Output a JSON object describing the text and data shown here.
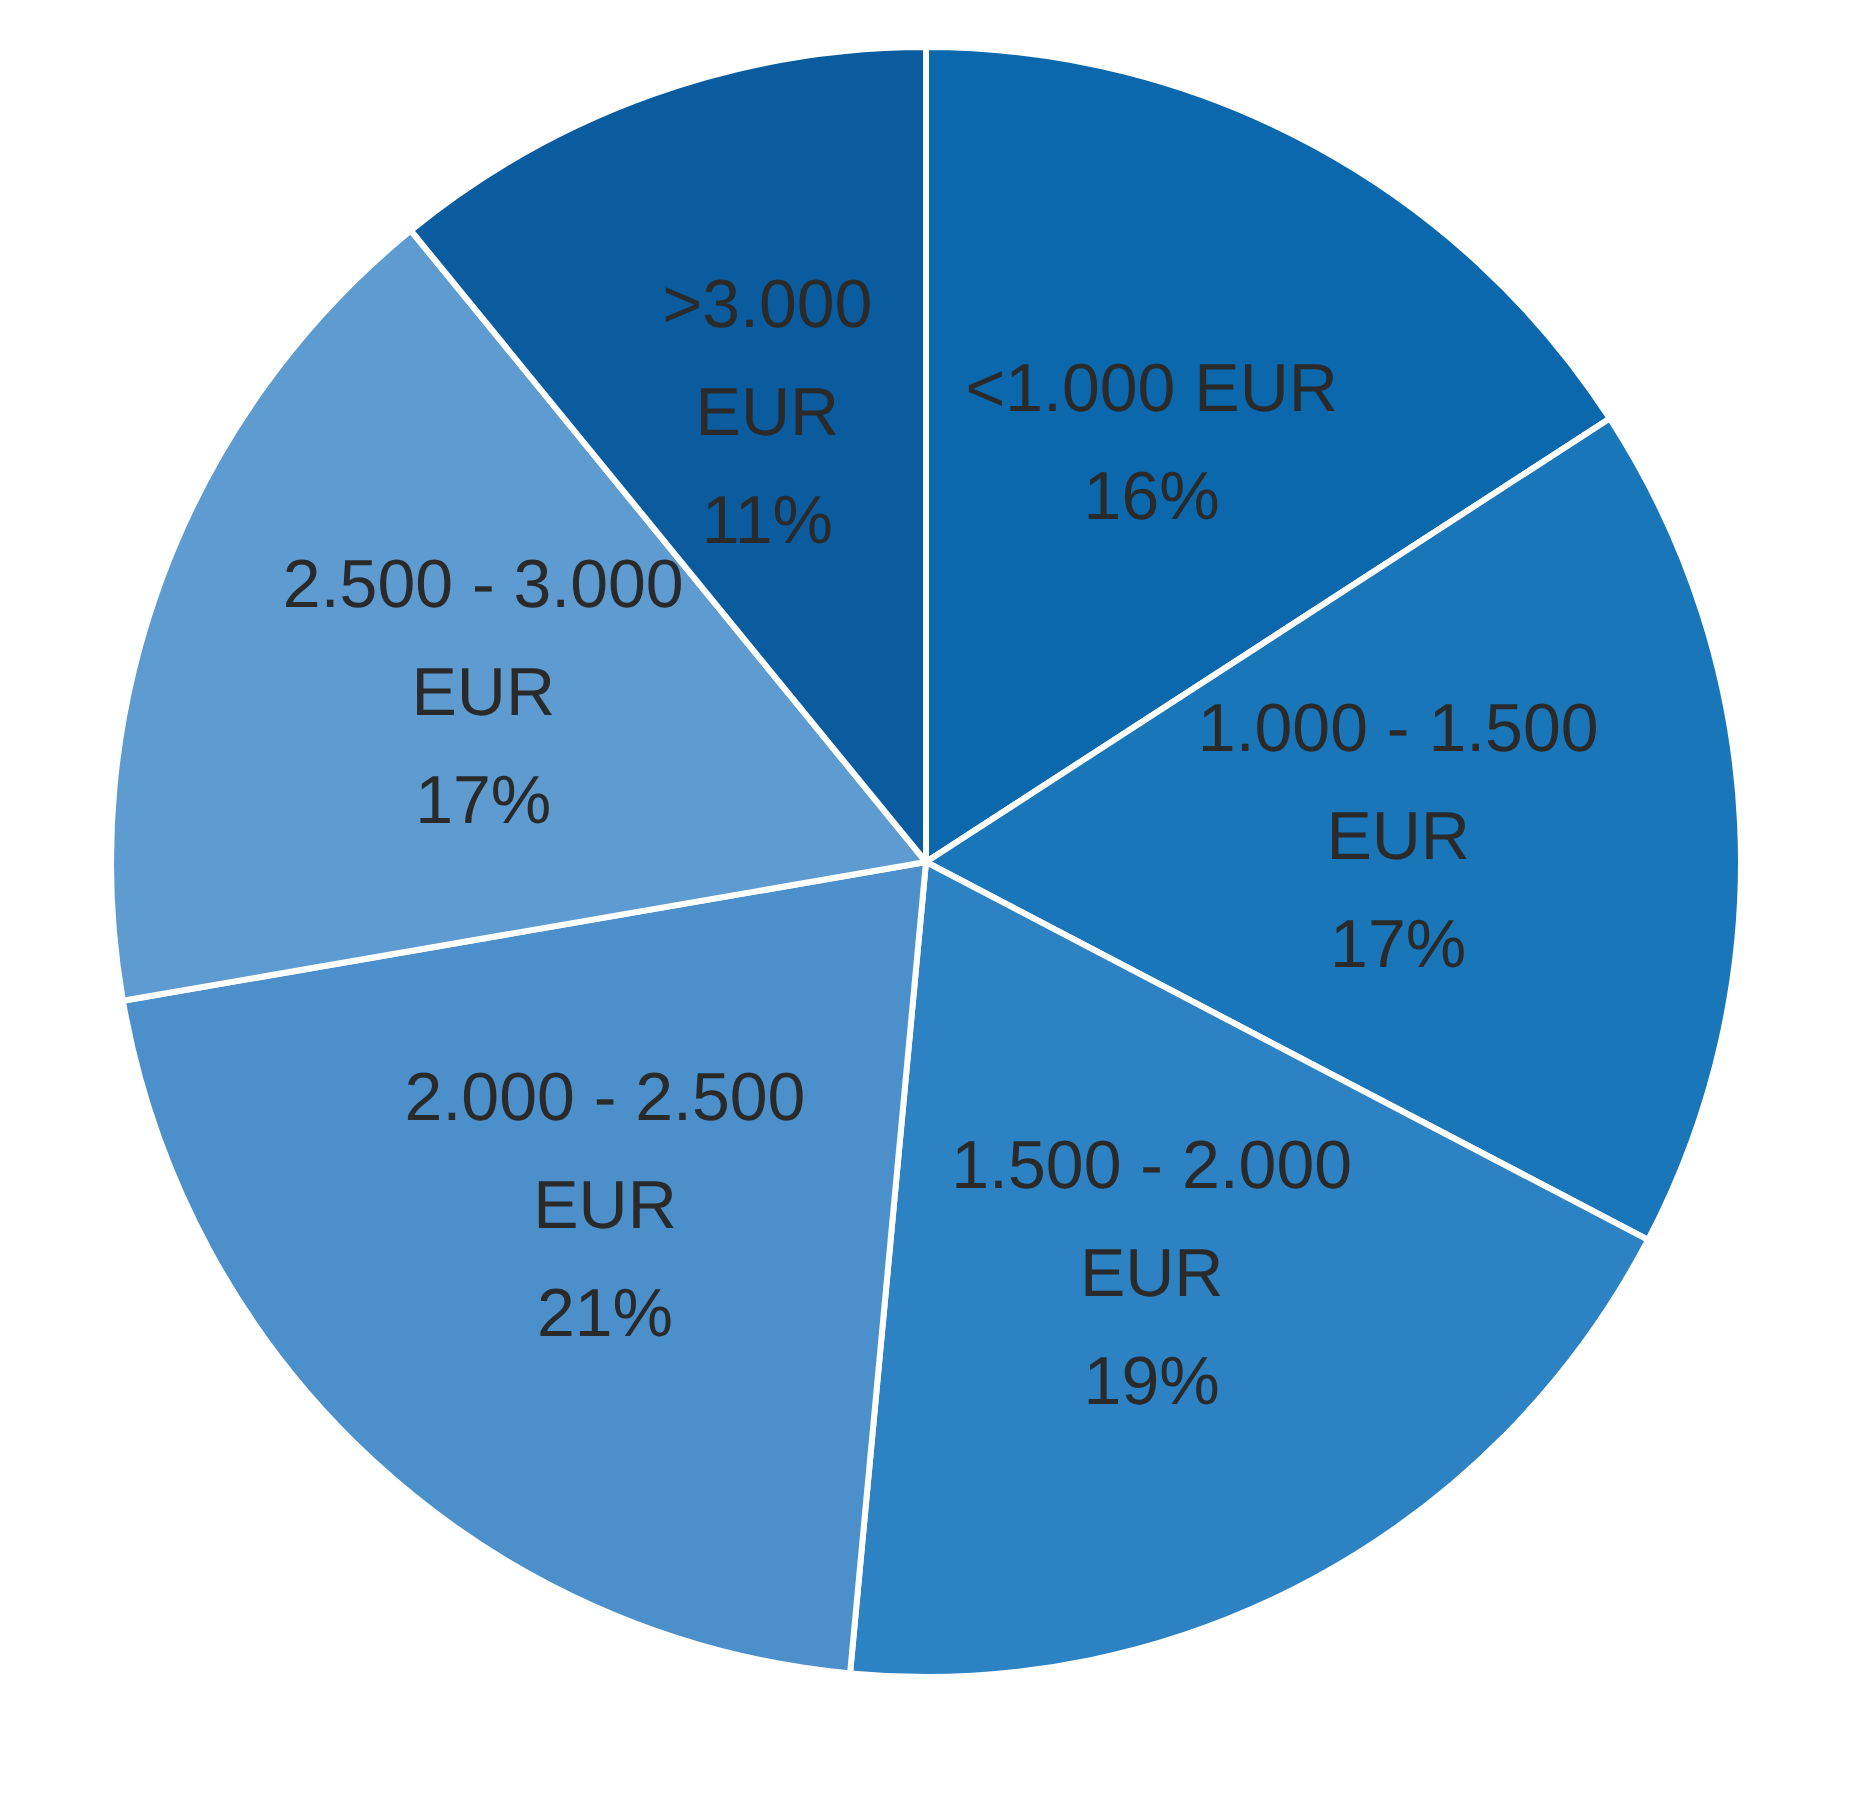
{
  "chart_data": {
    "type": "pie",
    "categories": [
      "<1.000 EUR",
      "1.000 - 1.500 EUR",
      "1.500 - 2.000 EUR",
      "2.000 - 2.500 EUR",
      "2.500 - 3.000 EUR",
      ">3.000 EUR"
    ],
    "values": [
      16,
      17,
      19,
      21,
      17,
      11
    ],
    "value_labels": [
      "16%",
      "17%",
      "19%",
      "21%",
      "17%",
      "11%"
    ],
    "colors": [
      "#0b68ad",
      "#1876b9",
      "#2d82c3",
      "#4b90cb",
      "#5d9bd1",
      "#0a5c9e"
    ],
    "legend": false
  }
}
